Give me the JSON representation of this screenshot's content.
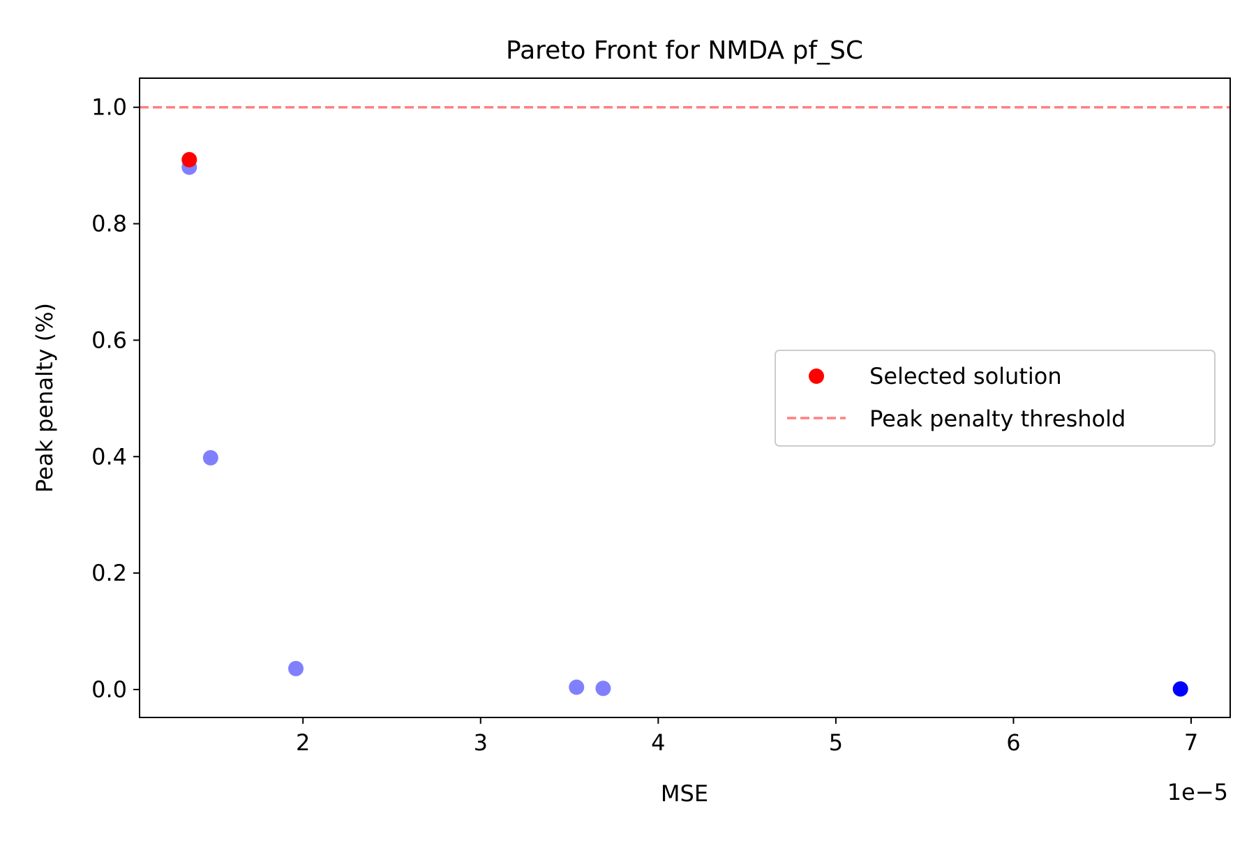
{
  "chart_data": {
    "type": "scatter",
    "title": "Pareto Front for NMDA pf_SC",
    "xlabel": "MSE",
    "ylabel": "Peak penalty (%)",
    "x_offset_text": "1e−5",
    "x_scale_factor": 1e-05,
    "xlim": [
      1.08e-05,
      7.22e-05
    ],
    "ylim": [
      -0.048,
      1.05
    ],
    "x_ticks": [
      2e-05,
      3e-05,
      4e-05,
      5e-05,
      6e-05,
      7e-05
    ],
    "x_tick_labels": [
      "2",
      "3",
      "4",
      "5",
      "6",
      "7"
    ],
    "y_ticks": [
      0.0,
      0.2,
      0.4,
      0.6,
      0.8,
      1.0
    ],
    "y_tick_labels": [
      "0.0",
      "0.2",
      "0.4",
      "0.6",
      "0.8",
      "1.0"
    ],
    "grid": false,
    "legend_position": "center-right",
    "series": [
      {
        "color": "#8080ff",
        "points": [
          {
            "x": 1.36e-05,
            "y": 0.897
          },
          {
            "x": 1.48e-05,
            "y": 0.398
          },
          {
            "x": 1.96e-05,
            "y": 0.036
          },
          {
            "x": 3.54e-05,
            "y": 0.004
          },
          {
            "x": 3.69e-05,
            "y": 0.002
          }
        ]
      },
      {
        "color": "#0000ff",
        "points": [
          {
            "x": 6.94e-05,
            "y": 0.001
          }
        ]
      },
      {
        "name": "Selected solution",
        "color": "#ff0000",
        "points": [
          {
            "x": 1.36e-05,
            "y": 0.91
          }
        ]
      }
    ],
    "reference_lines": [
      {
        "name": "Peak penalty threshold",
        "y": 1.0,
        "color": "#ff8080",
        "style": "dashed"
      }
    ],
    "legend": [
      {
        "label": "Selected solution",
        "kind": "marker",
        "color": "#ff0000"
      },
      {
        "label": "Peak penalty threshold",
        "kind": "dashed-line",
        "color": "#ff8080"
      }
    ]
  }
}
